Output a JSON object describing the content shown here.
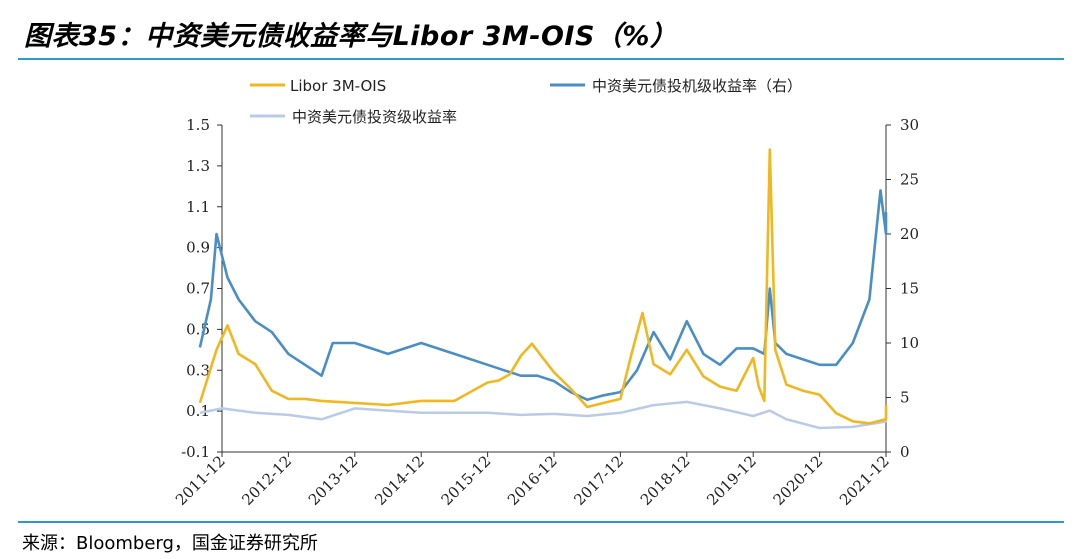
{
  "header": {
    "title": "图表35：中资美元债收益率与Libor 3M-OIS（%）"
  },
  "footer": {
    "source": "来源：Bloomberg，国金证券研究所"
  },
  "colors": {
    "libor": "#f2b71f",
    "hy": "#4a8ec6",
    "ig": "#b9cbe6",
    "rule": "#2f9ac8"
  },
  "chart_data": {
    "type": "line",
    "x_ticks": [
      "2011-12",
      "2012-12",
      "2013-12",
      "2014-12",
      "2015-12",
      "2016-12",
      "2017-12",
      "2018-12",
      "2019-12",
      "2020-12",
      "2021-12"
    ],
    "y_left": {
      "ticks": [
        "1.5",
        "1.3",
        "1.1",
        "0.9",
        "0.7",
        "0.5",
        "0.3",
        "0.1",
        "-0.1"
      ],
      "lim": [
        -0.1,
        1.5
      ]
    },
    "y_right": {
      "ticks": [
        "30",
        "25",
        "20",
        "15",
        "10",
        "5",
        "0"
      ],
      "lim": [
        0,
        30
      ]
    },
    "legend": [
      "Libor 3M-OIS",
      "中资美元债投机级收益率（右）",
      "中资美元债投资级收益率"
    ],
    "series": [
      {
        "name": "Libor 3M-OIS",
        "axis": "left",
        "x": [
          "2011-08",
          "2011-11",
          "2012-01",
          "2012-03",
          "2012-06",
          "2012-09",
          "2012-12",
          "2013-03",
          "2013-06",
          "2013-12",
          "2014-06",
          "2014-12",
          "2015-06",
          "2015-12",
          "2016-02",
          "2016-04",
          "2016-06",
          "2016-08",
          "2016-10",
          "2016-12",
          "2017-03",
          "2017-06",
          "2017-09",
          "2017-12",
          "2018-02",
          "2018-04",
          "2018-06",
          "2018-09",
          "2018-12",
          "2019-03",
          "2019-06",
          "2019-09",
          "2019-12",
          "2020-01",
          "2020-02",
          "2020-03",
          "2020-04",
          "2020-06",
          "2020-09",
          "2020-12",
          "2021-03",
          "2021-06",
          "2021-09",
          "2021-12",
          "2022-01"
        ],
        "values": [
          0.14,
          0.4,
          0.52,
          0.38,
          0.33,
          0.2,
          0.16,
          0.16,
          0.15,
          0.14,
          0.13,
          0.15,
          0.15,
          0.24,
          0.25,
          0.28,
          0.37,
          0.43,
          0.36,
          0.29,
          0.21,
          0.12,
          0.14,
          0.16,
          0.38,
          0.58,
          0.33,
          0.28,
          0.4,
          0.27,
          0.22,
          0.2,
          0.36,
          0.22,
          0.15,
          1.38,
          0.4,
          0.23,
          0.2,
          0.18,
          0.09,
          0.05,
          0.04,
          0.06,
          0.13
        ]
      },
      {
        "name": "中资美元债投机级收益率（右）",
        "axis": "right",
        "x": [
          "2011-08",
          "2011-10",
          "2011-11",
          "2012-01",
          "2012-03",
          "2012-06",
          "2012-09",
          "2012-12",
          "2013-03",
          "2013-06",
          "2013-08",
          "2013-12",
          "2014-06",
          "2014-12",
          "2015-06",
          "2015-12",
          "2016-03",
          "2016-06",
          "2016-09",
          "2016-12",
          "2017-03",
          "2017-06",
          "2017-09",
          "2017-12",
          "2018-03",
          "2018-06",
          "2018-09",
          "2018-12",
          "2019-03",
          "2019-06",
          "2019-09",
          "2019-12",
          "2020-02",
          "2020-03",
          "2020-04",
          "2020-06",
          "2020-09",
          "2020-12",
          "2021-03",
          "2021-06",
          "2021-09",
          "2021-10",
          "2021-11",
          "2021-12",
          "2022-01"
        ],
        "values": [
          9.6,
          14,
          20,
          16,
          14,
          12,
          11,
          9,
          8,
          7,
          10,
          10,
          9,
          10,
          9,
          8,
          7.5,
          7,
          7,
          6.5,
          5.5,
          4.8,
          5.2,
          5.5,
          7.5,
          11,
          8.5,
          12,
          9,
          8,
          9.5,
          9.5,
          9,
          15,
          10,
          9,
          8.5,
          8,
          8,
          10,
          14,
          19,
          24,
          20,
          22
        ]
      },
      {
        "name": "中资美元债投资级收益率",
        "axis": "right",
        "x": [
          "2011-08",
          "2011-12",
          "2012-06",
          "2012-12",
          "2013-03",
          "2013-06",
          "2013-12",
          "2014-06",
          "2014-12",
          "2015-06",
          "2015-12",
          "2016-06",
          "2016-12",
          "2017-06",
          "2017-12",
          "2018-06",
          "2018-12",
          "2019-06",
          "2019-12",
          "2020-03",
          "2020-06",
          "2020-12",
          "2021-06",
          "2021-12",
          "2022-01"
        ],
        "values": [
          3.6,
          4.0,
          3.6,
          3.4,
          3.2,
          3.0,
          4.0,
          3.8,
          3.6,
          3.6,
          3.6,
          3.4,
          3.5,
          3.3,
          3.6,
          4.3,
          4.6,
          4.0,
          3.3,
          3.8,
          3.0,
          2.2,
          2.3,
          2.8,
          2.9
        ]
      }
    ]
  }
}
